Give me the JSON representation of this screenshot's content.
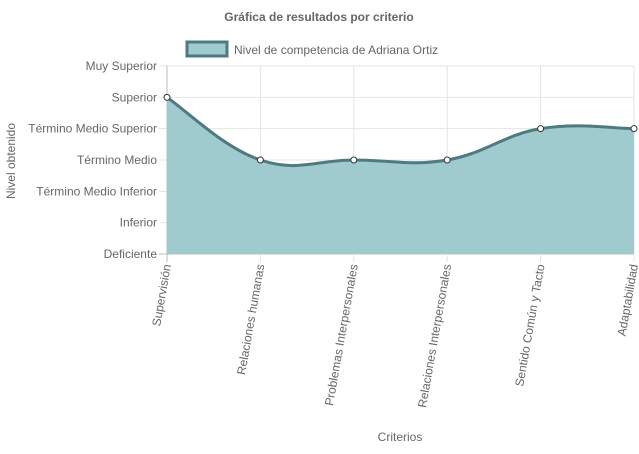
{
  "chart_data": {
    "type": "area",
    "title": "Gráfica de resultados por criterio",
    "xlabel": "Criterios",
    "ylabel": "Nivel obtenido",
    "categories": [
      "Supervisión",
      "Relaciones humanas",
      "Problemas Interpersonales",
      "Relaciones Interpersonales",
      "Sentido Común y Tacto",
      "Adaptabilidad"
    ],
    "y_levels": [
      "Deficiente",
      "Inferior",
      "Término Medio Inferior",
      "Término Medio",
      "Término Medio Superior",
      "Superior",
      "Muy Superior"
    ],
    "ylim": [
      1,
      7
    ],
    "series": [
      {
        "name": "Nivel de competencia de Adriana Ortiz",
        "values": [
          6,
          4,
          4,
          4,
          5,
          5
        ]
      }
    ],
    "legend_position": "top",
    "grid": true,
    "smooth": true,
    "colors": {
      "fill": "#9fcbcf",
      "line": "#4e7a80",
      "point_fill": "#ffffff",
      "grid": "#e4e4e4",
      "text": "#666666"
    }
  }
}
